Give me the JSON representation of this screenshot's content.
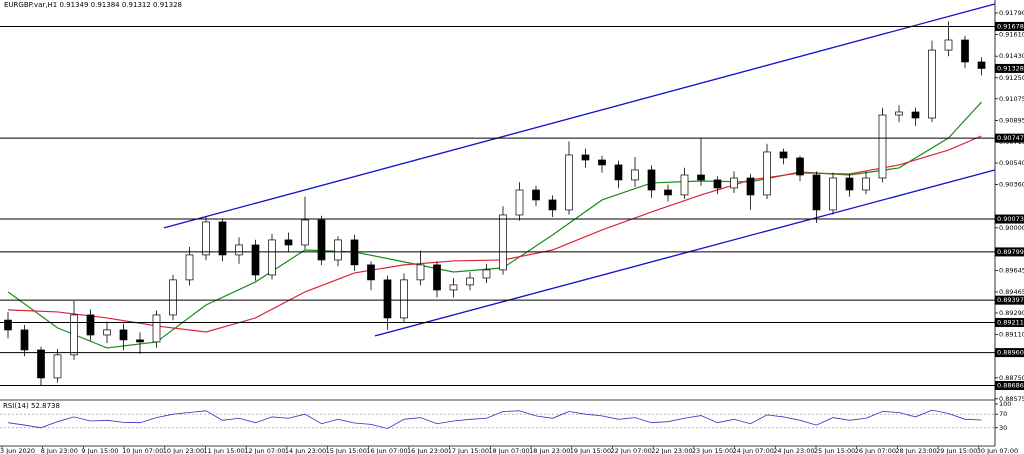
{
  "chart_data": {
    "type": "candlestick",
    "title": "EURGBP.var,H1",
    "header_values": [
      0.91349,
      0.91384,
      0.91312,
      0.91328
    ],
    "ylim": [
      0.88565,
      0.91865
    ],
    "yticks": [
      {
        "value": 0.9179,
        "label": "0.91790"
      },
      {
        "value": 0.9161,
        "label": "0.91610"
      },
      {
        "value": 0.9143,
        "label": "0.91430"
      },
      {
        "value": 0.9125,
        "label": "0.91250"
      },
      0.91075,
      0.90895,
      0.90715,
      {
        "value": 0.9054,
        "label": "0.90540"
      },
      {
        "value": 0.9036,
        "label": "0.90360"
      },
      {
        "value": 0.9,
        "label": "0.90000"
      },
      0.89645,
      0.89465,
      {
        "value": 0.8929,
        "label": "0.89290"
      },
      {
        "value": 0.8911,
        "label": "0.89110"
      },
      {
        "value": 0.8875,
        "label": "0.88750"
      },
      0.88575
    ],
    "x_labels": [
      "3 Jun 2020",
      "8 Jun 23:00",
      "9 Jun 15:00",
      "10 Jun 07:00",
      "10 Jun 23:00",
      "11 Jun 15:00",
      "12 Jun 07:00",
      "14 Jun 23:00",
      "15 Jun 15:00",
      "16 Jun 07:00",
      "16 Jun 23:00",
      "17 Jun 15:00",
      "18 Jun 07:00",
      "18 Jun 23:00",
      "19 Jun 15:00",
      "22 Jun 07:00",
      "22 Jun 23:00",
      "23 Jun 15:00",
      "24 Jun 07:00",
      "24 Jun 23:00",
      "25 Jun 15:00",
      "26 Jun 07:00",
      "28 Jun 23:00",
      "29 Jun 15:00",
      "30 Jun 07:00"
    ],
    "candles": [
      [
        0.89231,
        0.893,
        0.8908,
        0.89149
      ],
      [
        0.89149,
        0.8919,
        0.8893,
        0.88982
      ],
      [
        0.88982,
        0.8901,
        0.8869,
        0.88749
      ],
      [
        0.88749,
        0.8899,
        0.8871,
        0.88941
      ],
      [
        0.88941,
        0.8939,
        0.889,
        0.89274
      ],
      [
        0.89274,
        0.8932,
        0.8906,
        0.89107
      ],
      [
        0.89107,
        0.8922,
        0.8904,
        0.89149
      ],
      [
        0.89149,
        0.892,
        0.8898,
        0.89066
      ],
      [
        0.89066,
        0.8913,
        0.8895,
        0.89049
      ],
      [
        0.89049,
        0.8931,
        0.89,
        0.89274
      ],
      [
        0.89274,
        0.8961,
        0.8923,
        0.89566
      ],
      [
        0.89566,
        0.8984,
        0.8952,
        0.89774
      ],
      [
        0.89774,
        0.9009,
        0.8973,
        0.90049
      ],
      [
        0.90049,
        0.9007,
        0.8972,
        0.89774
      ],
      [
        0.89774,
        0.8992,
        0.897,
        0.89857
      ],
      [
        0.89857,
        0.899,
        0.8956,
        0.89607
      ],
      [
        0.89607,
        0.8995,
        0.8957,
        0.89899
      ],
      [
        0.89899,
        0.8996,
        0.898,
        0.89857
      ],
      [
        0.89857,
        0.9026,
        0.8982,
        0.90065
      ],
      [
        0.90065,
        0.901,
        0.8969,
        0.89732
      ],
      [
        0.89732,
        0.8993,
        0.8968,
        0.89899
      ],
      [
        0.89899,
        0.8994,
        0.8964,
        0.89691
      ],
      [
        0.89691,
        0.8972,
        0.8948,
        0.89566
      ],
      [
        0.89566,
        0.896,
        0.8915,
        0.89249
      ],
      [
        0.89249,
        0.8962,
        0.8921,
        0.89566
      ],
      [
        0.89566,
        0.8981,
        0.8952,
        0.89691
      ],
      [
        0.89691,
        0.8972,
        0.8942,
        0.89482
      ],
      [
        0.89482,
        0.8958,
        0.8942,
        0.89524
      ],
      [
        0.89524,
        0.8963,
        0.8948,
        0.89582
      ],
      [
        0.89582,
        0.897,
        0.8954,
        0.89649
      ],
      [
        0.89649,
        0.9018,
        0.8961,
        0.90107
      ],
      [
        0.90107,
        0.9038,
        0.9006,
        0.90315
      ],
      [
        0.90315,
        0.9035,
        0.9018,
        0.90232
      ],
      [
        0.90232,
        0.9027,
        0.9009,
        0.90149
      ],
      [
        0.90149,
        0.9072,
        0.9011,
        0.90607
      ],
      [
        0.90607,
        0.9066,
        0.905,
        0.90565
      ],
      [
        0.90565,
        0.906,
        0.9046,
        0.90524
      ],
      [
        0.90524,
        0.9056,
        0.9033,
        0.90399
      ],
      [
        0.90399,
        0.9059,
        0.9034,
        0.90482
      ],
      [
        0.90482,
        0.9052,
        0.9025,
        0.90315
      ],
      [
        0.90315,
        0.9036,
        0.9022,
        0.90274
      ],
      [
        0.90274,
        0.905,
        0.9024,
        0.9044
      ],
      [
        0.9044,
        0.90747,
        0.9035,
        0.90399
      ],
      [
        0.90399,
        0.9043,
        0.9028,
        0.90332
      ],
      [
        0.90332,
        0.9047,
        0.9029,
        0.90415
      ],
      [
        0.90415,
        0.9045,
        0.9015,
        0.90274
      ],
      [
        0.90274,
        0.907,
        0.9024,
        0.90632
      ],
      [
        0.90632,
        0.9066,
        0.9053,
        0.90582
      ],
      [
        0.90582,
        0.906,
        0.9039,
        0.9044
      ],
      [
        0.9044,
        0.9047,
        0.9004,
        0.90149
      ],
      [
        0.90149,
        0.9046,
        0.9011,
        0.90415
      ],
      [
        0.90415,
        0.9045,
        0.9026,
        0.90315
      ],
      [
        0.90315,
        0.9047,
        0.9028,
        0.90415
      ],
      [
        0.90415,
        0.91,
        0.9038,
        0.9094
      ],
      [
        0.9094,
        0.9102,
        0.9088,
        0.90965
      ],
      [
        0.90965,
        0.91,
        0.9085,
        0.90915
      ],
      [
        0.90915,
        0.9156,
        0.9088,
        0.91481
      ],
      [
        0.91481,
        0.9172,
        0.9143,
        0.91565
      ],
      [
        0.91565,
        0.916,
        0.9133,
        0.91382
      ],
      [
        0.91382,
        0.9142,
        0.9127,
        0.91328
      ]
    ],
    "moving_averages": [
      {
        "color": "#1a8c1a",
        "x": [
          0,
          3,
          6,
          9,
          12,
          15,
          18,
          21,
          24,
          27,
          30,
          33,
          36,
          39,
          42,
          45,
          48,
          51,
          54,
          57,
          59
        ],
        "values": [
          0.89466,
          0.89166,
          0.88999,
          0.89049,
          0.89357,
          0.89549,
          0.89815,
          0.89799,
          0.89716,
          0.89632,
          0.89666,
          0.8994,
          0.90232,
          0.90374,
          0.9039,
          0.90382,
          0.90465,
          0.9044,
          0.90499,
          0.90748,
          0.91048
        ]
      },
      {
        "color": "#e0203a",
        "x": [
          0,
          3,
          6,
          9,
          12,
          15,
          18,
          21,
          24,
          27,
          30,
          33,
          36,
          39,
          42,
          45,
          48,
          51,
          54,
          57,
          59
        ],
        "values": [
          0.89316,
          0.89299,
          0.89249,
          0.89182,
          0.89132,
          0.89249,
          0.89466,
          0.89624,
          0.89691,
          0.89724,
          0.89732,
          0.89815,
          0.89982,
          0.90132,
          0.90274,
          0.90399,
          0.90457,
          0.90449,
          0.90524,
          0.90648,
          0.90765
        ]
      }
    ],
    "trendlines": [
      {
        "color": "#1010d0",
        "x": [
          9.45,
          59.8
        ],
        "values": [
          0.89999,
          0.91865
        ]
      },
      {
        "color": "#1010d0",
        "x": [
          22.24,
          59.8
        ],
        "values": [
          0.89099,
          0.90482
        ]
      }
    ],
    "levels": [
      0.91678,
      0.90747,
      0.90073,
      0.89799,
      0.89397,
      0.89211,
      {
        "value": 0.8896,
        "label": "0.88960"
      },
      0.88686
    ],
    "last_price": 0.91328,
    "rsi": {
      "label": "RSI(14)",
      "color": "#3030c0",
      "ylim": [
        0,
        100
      ],
      "yticks": [
        100,
        70,
        30
      ],
      "levels": [
        70,
        30
      ],
      "values": [
        45,
        38,
        30,
        48,
        62,
        50,
        52,
        46,
        45,
        60,
        70,
        75,
        80,
        52,
        58,
        45,
        62,
        58,
        70,
        42,
        55,
        44,
        40,
        28,
        55,
        60,
        42,
        50,
        55,
        58,
        78,
        80,
        65,
        58,
        78,
        70,
        65,
        55,
        60,
        45,
        48,
        58,
        66,
        45,
        55,
        42,
        68,
        62,
        52,
        38,
        60,
        52,
        58,
        78,
        75,
        62,
        82,
        72,
        55,
        52.8738
      ]
    }
  }
}
